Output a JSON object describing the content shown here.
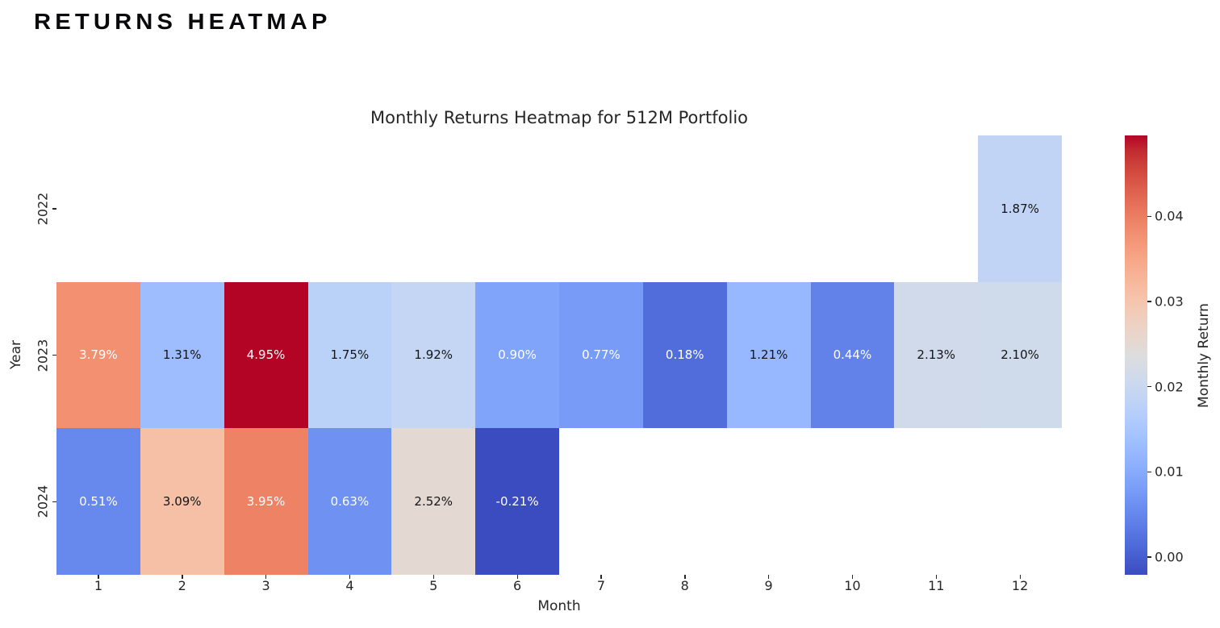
{
  "page": {
    "title": "RETURNS HEATMAP"
  },
  "chart_data": {
    "type": "heatmap",
    "title": "Monthly Returns Heatmap for 512M Portfolio",
    "xlabel": "Month",
    "ylabel": "Year",
    "x_categories": [
      "1",
      "2",
      "3",
      "4",
      "5",
      "6",
      "7",
      "8",
      "9",
      "10",
      "11",
      "12"
    ],
    "y_categories": [
      "2022",
      "2023",
      "2024"
    ],
    "grid": false,
    "legend_position": "none",
    "colormap": "coolwarm",
    "colormap_stops": [
      "#3B4CC0",
      "#445ACC",
      "#4D68D7",
      "#5775E1",
      "#6282EA",
      "#6C8EF1",
      "#779AF7",
      "#82A5FB",
      "#8DB0FE",
      "#98B9FF",
      "#A3C2FF",
      "#AEC9FD",
      "#B8D0F9",
      "#C2D5F4",
      "#CCD9EE",
      "#D5DBE6",
      "#DDDDDD",
      "#E5D8D1",
      "#ECD3C5",
      "#F1CCB9",
      "#F5C4AD",
      "#F7BBA0",
      "#F7B194",
      "#F7A687",
      "#F49A7B",
      "#F18D6F",
      "#EC7F63",
      "#E57058",
      "#DE604D",
      "#D55042",
      "#CB3E38",
      "#C0282F",
      "#B40426"
    ],
    "colorbar": {
      "label": "Monthly Return",
      "ticks": [
        0.0,
        0.01,
        0.02,
        0.03,
        0.04
      ],
      "tick_labels": [
        "0.00",
        "0.01",
        "0.02",
        "0.03",
        "0.04"
      ],
      "vmin": -0.0021,
      "vmax": 0.0495
    },
    "text_colors": {
      "dark": "#151515",
      "light": "#ffffff"
    },
    "series": [
      {
        "year": "2022",
        "cells": [
          null,
          null,
          null,
          null,
          null,
          null,
          null,
          null,
          null,
          null,
          null,
          {
            "value": 0.0187,
            "label": "1.87%",
            "color": "#C1D4F5",
            "text": "dark"
          }
        ]
      },
      {
        "year": "2023",
        "cells": [
          {
            "value": 0.0379,
            "label": "3.79%",
            "color": "#F29071",
            "text": "light"
          },
          {
            "value": 0.0131,
            "label": "1.31%",
            "color": "#9DBDFF",
            "text": "dark"
          },
          {
            "value": 0.0495,
            "label": "4.95%",
            "color": "#B40426",
            "text": "light"
          },
          {
            "value": 0.0175,
            "label": "1.75%",
            "color": "#BAD1F8",
            "text": "dark"
          },
          {
            "value": 0.0192,
            "label": "1.92%",
            "color": "#C4D6F3",
            "text": "dark"
          },
          {
            "value": 0.009,
            "label": "0.90%",
            "color": "#81A4FB",
            "text": "light"
          },
          {
            "value": 0.0077,
            "label": "0.77%",
            "color": "#789BF7",
            "text": "light"
          },
          {
            "value": 0.0018,
            "label": "0.18%",
            "color": "#516DDB",
            "text": "light"
          },
          {
            "value": 0.0121,
            "label": "1.21%",
            "color": "#97B8FF",
            "text": "dark"
          },
          {
            "value": 0.0044,
            "label": "0.44%",
            "color": "#6282EA",
            "text": "light"
          },
          {
            "value": 0.0213,
            "label": "2.13%",
            "color": "#D1DAEA",
            "text": "dark"
          },
          {
            "value": 0.021,
            "label": "2.10%",
            "color": "#CFDAEB",
            "text": "dark"
          }
        ]
      },
      {
        "year": "2024",
        "cells": [
          {
            "value": 0.0051,
            "label": "0.51%",
            "color": "#6788ED",
            "text": "light"
          },
          {
            "value": 0.0309,
            "label": "3.09%",
            "color": "#F6C0A7",
            "text": "dark"
          },
          {
            "value": 0.0395,
            "label": "3.95%",
            "color": "#ED8265",
            "text": "light"
          },
          {
            "value": 0.0063,
            "label": "0.63%",
            "color": "#6E91F2",
            "text": "light"
          },
          {
            "value": 0.0252,
            "label": "2.52%",
            "color": "#E4D8D2",
            "text": "dark"
          },
          {
            "value": -0.0021,
            "label": "-0.21%",
            "color": "#3B4CC0",
            "text": "light"
          },
          null,
          null,
          null,
          null,
          null,
          null
        ]
      }
    ]
  }
}
